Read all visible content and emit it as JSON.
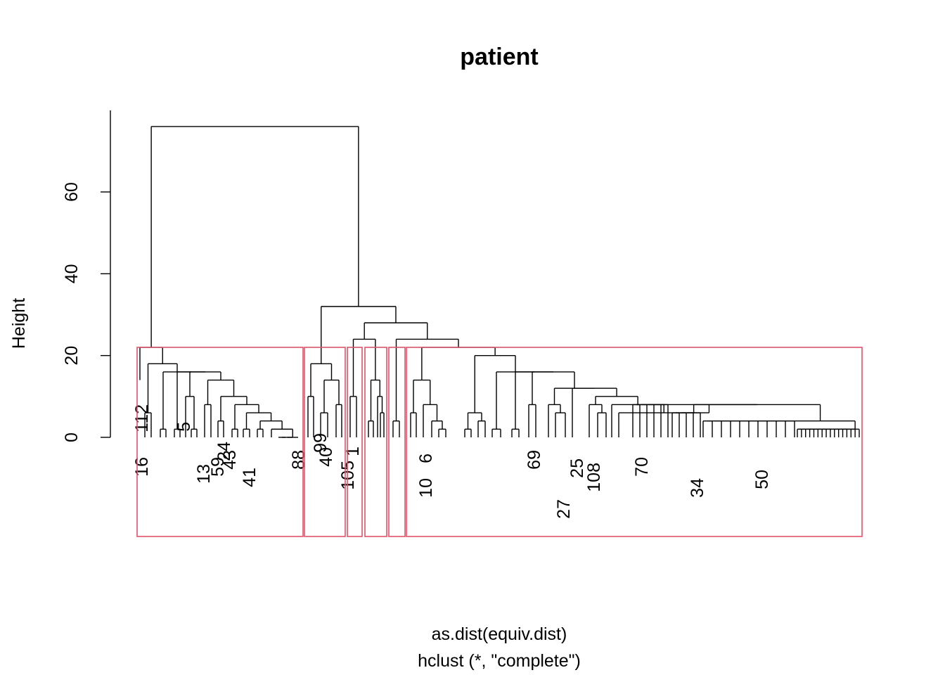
{
  "chart_data": {
    "type": "dendrogram",
    "title": "patient",
    "xlabel": "as.dist(equiv.dist)",
    "sub": "hclust (*, \"complete\")",
    "ylabel": "Height",
    "ylim": [
      0,
      76
    ],
    "y_ticks": [
      0,
      20,
      40,
      60
    ],
    "cut_height": 22,
    "n_clusters": 6,
    "rect_color": "#DF536B",
    "line_color": "#000000",
    "leaf_labels_visible": [
      "112",
      "16",
      "5",
      "59",
      "24",
      "13",
      "43",
      "41",
      "88",
      "99",
      "40",
      "1",
      "105",
      "6",
      "10",
      "69",
      "25",
      "108",
      "70",
      "34",
      "27",
      "50"
    ],
    "merge_heights_visible": [
      76,
      32,
      28,
      24,
      22,
      20,
      18,
      16,
      14,
      12,
      10,
      8,
      6,
      4,
      2
    ]
  }
}
